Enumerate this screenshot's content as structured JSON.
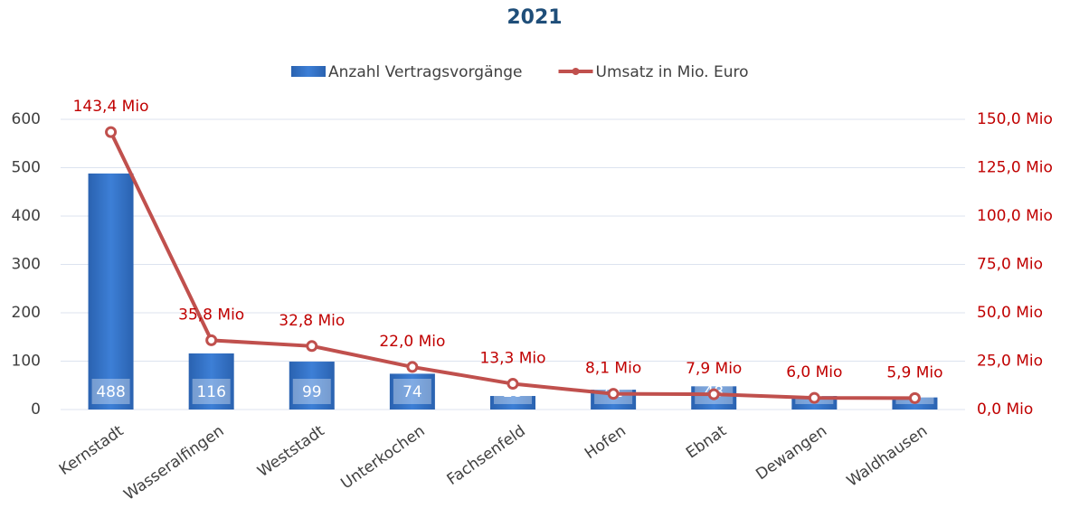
{
  "chart_data": {
    "type": "bar",
    "title": "2021",
    "categories": [
      "Kernstadt",
      "Wasseralfingen",
      "Weststadt",
      "Unterkochen",
      "Fachsenfeld",
      "Hofen",
      "Ebnat",
      "Dewangen",
      "Waldhausen"
    ],
    "series": [
      {
        "name": "Anzahl Vertragsvorgänge",
        "type": "bar",
        "color": "#2e6cc0",
        "values": [
          488,
          116,
          99,
          74,
          28,
          41,
          48,
          28,
          25
        ]
      },
      {
        "name": "Umsatz in Mio. Euro",
        "type": "line",
        "axis": "y2",
        "color": "#c0504d",
        "values": [
          143.4,
          35.8,
          32.8,
          22.0,
          13.3,
          8.1,
          7.9,
          6.0,
          5.9
        ],
        "value_labels": [
          "143,4 Mio",
          "35,8 Mio",
          "32,8 Mio",
          "22,0 Mio",
          "13,3 Mio",
          "8,1 Mio",
          "7,9 Mio",
          "6,0 Mio",
          "5,9 Mio"
        ]
      }
    ],
    "ylim": [
      0,
      600
    ],
    "yticks": [
      0,
      100,
      200,
      300,
      400,
      500,
      600
    ],
    "y2lim": [
      0,
      150
    ],
    "y2ticks": [
      {
        "value": 0,
        "label": "0,0 Mio"
      },
      {
        "value": 25,
        "label": "25,0 Mio"
      },
      {
        "value": 50,
        "label": "50,0 Mio"
      },
      {
        "value": 75,
        "label": "75,0 Mio"
      },
      {
        "value": 100,
        "label": "100,0 Mio"
      },
      {
        "value": 125,
        "label": "125,0 Mio"
      },
      {
        "value": 150,
        "label": "150,0 Mio"
      }
    ],
    "grid": true,
    "legend": "top"
  }
}
